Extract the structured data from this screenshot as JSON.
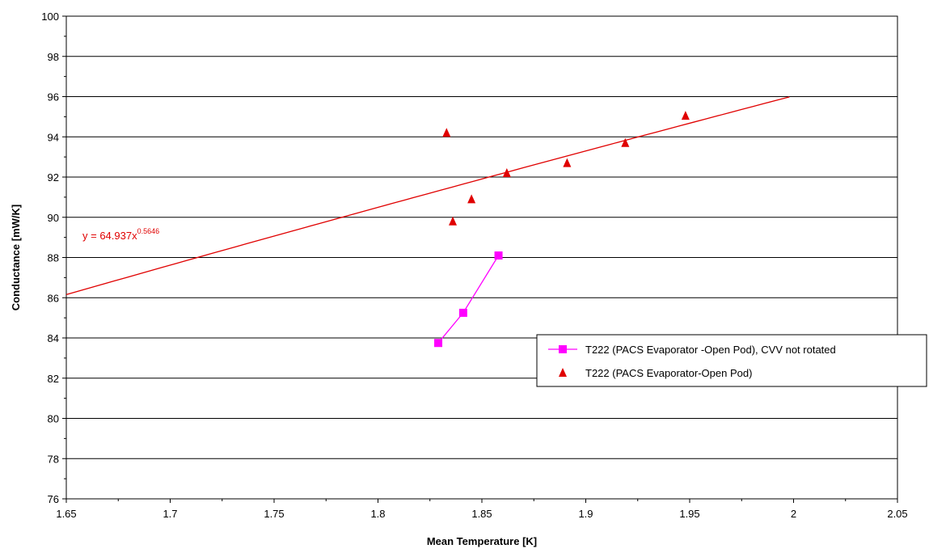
{
  "chart_data": {
    "type": "scatter",
    "xlabel": "Mean Temperature [K]",
    "ylabel": "Conductance [mW/K]",
    "xlim": [
      1.65,
      2.05
    ],
    "ylim": [
      76,
      100
    ],
    "x_ticks": [
      "1.65",
      "1.7",
      "1.75",
      "1.8",
      "1.85",
      "1.9",
      "1.95",
      "2",
      "2.05"
    ],
    "y_ticks": [
      "76",
      "78",
      "80",
      "82",
      "84",
      "86",
      "88",
      "90",
      "92",
      "94",
      "96",
      "98",
      "100"
    ],
    "grid": "horizontal",
    "legend_position": "right",
    "series": [
      {
        "name": "T222 (PACS Evaporator -Open Pod), CVV not rotated",
        "style": "line-markers",
        "marker": "square",
        "color": "#ff00ff",
        "x": [
          1.829,
          1.841,
          1.858
        ],
        "y": [
          83.75,
          85.25,
          88.1
        ]
      },
      {
        "name": "T222 (PACS Evaporator-Open Pod)",
        "style": "markers",
        "marker": "triangle",
        "color": "#e00000",
        "x": [
          1.833,
          1.836,
          1.845,
          1.862,
          1.891,
          1.919,
          1.948
        ],
        "y": [
          94.2,
          89.8,
          90.9,
          92.2,
          92.7,
          93.7,
          95.05
        ]
      }
    ],
    "trendline": {
      "type": "power",
      "coefficient": 64.937,
      "exponent": 0.5646,
      "x_range": [
        1.65,
        1.998
      ],
      "color": "#e00000",
      "label_base": "y = 64.937x",
      "label_exponent": "0.5646"
    }
  }
}
